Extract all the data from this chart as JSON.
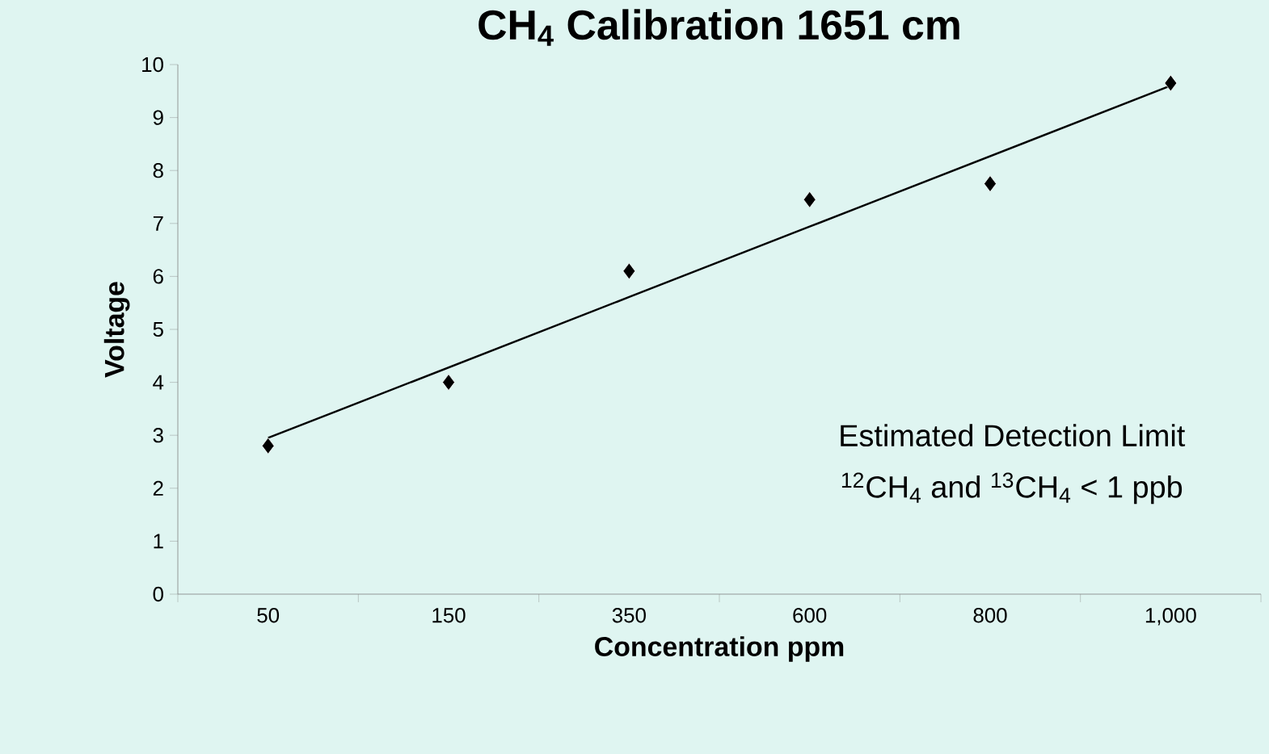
{
  "chart_data": {
    "type": "scatter",
    "title": "CH$_{4}$ Calibration 1651 cm",
    "xlabel": "Concentration ppm",
    "ylabel": "Voltage",
    "categories": [
      "50",
      "150",
      "350",
      "600",
      "800",
      "1,000"
    ],
    "series": [
      {
        "color": "#000000",
        "values": [
          2.8,
          4.0,
          6.1,
          7.45,
          7.75,
          9.65
        ]
      },
      {
        "type": "line",
        "marker": "none",
        "color": "#000000",
        "values": [
          2.95,
          4.28,
          5.61,
          6.94,
          8.27,
          9.6
        ]
      }
    ],
    "ylim": [
      0,
      10
    ],
    "yticks": [
      0,
      1,
      2,
      3,
      4,
      5,
      6,
      7,
      8,
      9,
      10
    ],
    "marker": "diamond",
    "grid": false,
    "annotations": [
      "Estimated Detection Limit",
      "$^{12}$CH$_{4}$ and $^{13}$CH$_{4}$ < 1 ppb"
    ]
  }
}
